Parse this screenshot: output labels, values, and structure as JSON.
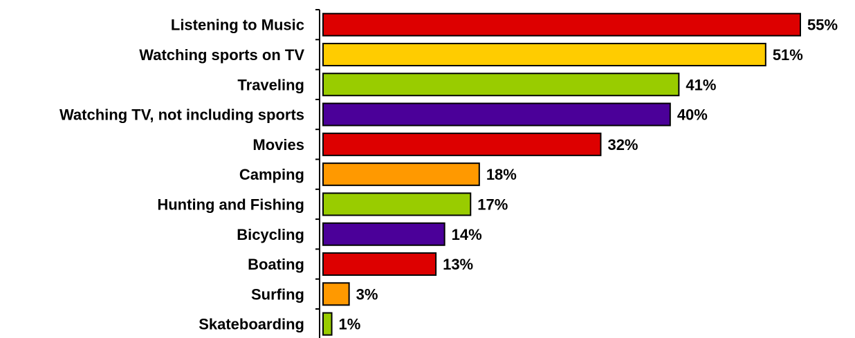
{
  "chart_data": {
    "type": "bar",
    "orientation": "horizontal",
    "categories": [
      "Listening to Music",
      "Watching sports on TV",
      "Traveling",
      "Watching TV, not including sports",
      "Movies",
      "Camping",
      "Hunting and Fishing",
      "Bicycling",
      "Boating",
      "Surfing",
      "Skateboarding"
    ],
    "values": [
      55,
      51,
      41,
      40,
      32,
      18,
      17,
      14,
      13,
      3,
      1
    ],
    "value_labels": [
      "55%",
      "51%",
      "41%",
      "40%",
      "32%",
      "18%",
      "17%",
      "14%",
      "13%",
      "3%",
      "1%"
    ],
    "colors": [
      "#dd0000",
      "#ffcc00",
      "#99cc00",
      "#4b0099",
      "#dd0000",
      "#ff9900",
      "#99cc00",
      "#4b0099",
      "#dd0000",
      "#ff9900",
      "#99cc00"
    ],
    "title": "",
    "xlabel": "",
    "ylabel": "",
    "xlim": [
      0,
      55
    ],
    "grid": false,
    "legend": "none"
  }
}
